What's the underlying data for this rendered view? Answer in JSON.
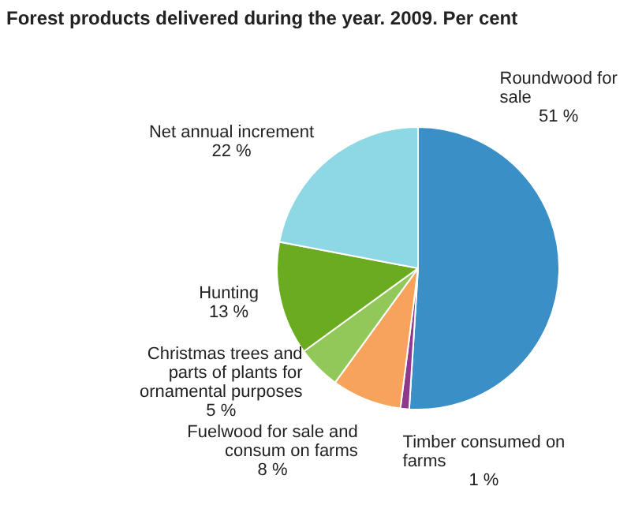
{
  "chart_data": {
    "type": "pie",
    "title": "Forest products delivered during the year. 2009. Per cent",
    "categories": [
      "Roundwood for sale",
      "Timber consumed on farms",
      "Fuelwood for sale and consum on farms",
      "Christmas trees and parts of plants for ornamental purposes",
      "Hunting",
      "Net annual increment"
    ],
    "values": [
      51,
      1,
      8,
      5,
      13,
      22
    ],
    "value_labels": [
      "51 %",
      "1 %",
      "8 %",
      "5 %",
      "13 %",
      "22 %"
    ],
    "colors": [
      "#3a8fc6",
      "#8e3a8c",
      "#f7a35c",
      "#92c85a",
      "#6aab1f",
      "#8ed8e5"
    ],
    "legend": false
  }
}
